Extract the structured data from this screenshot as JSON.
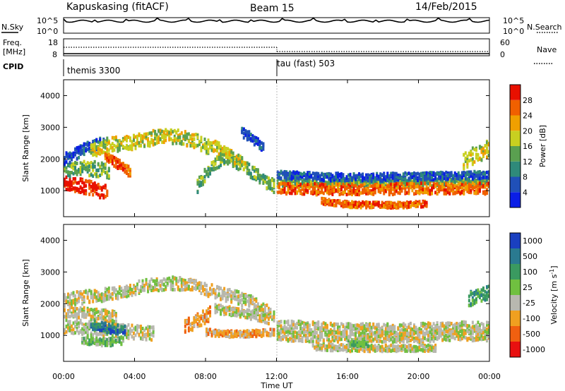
{
  "header": {
    "station": "Kapuskasing (fitACF)",
    "beam": "Beam 15",
    "date": "14/Feb/2015"
  },
  "noise_panel": {
    "left_label": "N.Sky",
    "right_label": "N.Search",
    "left_ticks": [
      "10^5",
      "10^0"
    ],
    "right_ticks": [
      "10^5",
      "10^0"
    ]
  },
  "freq_panel": {
    "left_label_1": "Freq.",
    "left_label_2": "[MHz]",
    "right_label": "Nave",
    "left_ticks": [
      "18",
      "8"
    ],
    "right_ticks": [
      "60",
      "0"
    ]
  },
  "cpid_panel": {
    "label": "CPID",
    "modes": [
      "themis 3300",
      "tau (fast) 503"
    ]
  },
  "time_axis": {
    "label": "Time UT",
    "ticks": [
      "00:00",
      "04:00",
      "08:00",
      "12:00",
      "16:00",
      "20:00",
      "00:00"
    ],
    "range_hours": [
      0,
      24
    ]
  },
  "range_axis": {
    "label": "Slant Range [km]",
    "ticks": [
      "1000",
      "2000",
      "3000",
      "4000"
    ],
    "range_km": [
      180,
      4500
    ]
  },
  "power_colorbar": {
    "title": "Power [dB]",
    "ticks": [
      "4",
      "8",
      "12",
      "16",
      "20",
      "24",
      "28"
    ],
    "colors": [
      "#0a1ee6",
      "#2050b8",
      "#2f8a7a",
      "#5aa050",
      "#c8d020",
      "#f0a000",
      "#f06000",
      "#e81000"
    ]
  },
  "velocity_colorbar": {
    "title": "Velocity [m s",
    "title_sup": "-1",
    "title_end": "]",
    "ticks": [
      "1000",
      "500",
      "100",
      "25",
      "-25",
      "-100",
      "-500",
      "-1000"
    ],
    "colors": [
      "#1a40c0",
      "#2a7a90",
      "#3a9a60",
      "#70c040",
      "#b8b8b0",
      "#f0a020",
      "#f06010",
      "#e81010"
    ]
  },
  "chart_data": {
    "type": "heatmap",
    "x_label": "Time UT",
    "y_label": "Slant Range [km]",
    "xlim": [
      0,
      24
    ],
    "ylim": [
      180,
      4500
    ],
    "mode_change_hour": 12.0,
    "power_bands": [
      {
        "t": [
          0.0,
          0.6,
          1.3,
          2.0,
          2.5
        ],
        "r": [
          1300,
          1250,
          1150,
          1050,
          1000
        ],
        "w": 220,
        "level": 7
      },
      {
        "t": [
          0.0,
          0.8,
          1.5,
          2.2,
          2.6
        ],
        "r": [
          1700,
          1750,
          1750,
          1700,
          1650
        ],
        "w": 230,
        "level": 3
      },
      {
        "t": [
          0.0,
          0.6,
          1.2,
          1.8,
          2.4
        ],
        "r": [
          2050,
          2200,
          2400,
          2500,
          2600
        ],
        "w": 180,
        "level": 1
      },
      {
        "t": [
          1.5,
          2.5,
          3.5,
          4.5,
          5.5,
          6.5,
          7.5,
          8.2
        ],
        "r": [
          2300,
          2500,
          2550,
          2650,
          2800,
          2750,
          2600,
          2400
        ],
        "w": 230,
        "level": 4
      },
      {
        "t": [
          2.3,
          3.0,
          3.8
        ],
        "r": [
          2150,
          1900,
          1600
        ],
        "w": 150,
        "level": 6
      },
      {
        "t": [
          7.5,
          8.0,
          8.5,
          9.0,
          9.5,
          10.0
        ],
        "r": [
          1200,
          1600,
          1900,
          2100,
          2000,
          1800
        ],
        "w": 200,
        "level": 3
      },
      {
        "t": [
          8.3,
          9.0,
          9.5,
          10.0,
          10.3
        ],
        "r": [
          2500,
          2300,
          2100,
          1950,
          1800
        ],
        "w": 180,
        "level": 4
      },
      {
        "t": [
          10.3,
          10.8,
          11.3,
          11.8
        ],
        "r": [
          1750,
          1550,
          1350,
          1200
        ],
        "w": 200,
        "level": 3
      },
      {
        "t": [
          10.0,
          10.6,
          11.2
        ],
        "r": [
          2900,
          2700,
          2400
        ],
        "w": 150,
        "level": 1
      },
      {
        "t": [
          12.0,
          14.0,
          16.0,
          18.0,
          20.0,
          22.0,
          24.0
        ],
        "r": [
          1330,
          1300,
          1300,
          1300,
          1300,
          1300,
          1300
        ],
        "w": 120,
        "level": 3
      },
      {
        "t": [
          12.0,
          14.0,
          16.0,
          18.0,
          20.0,
          22.0,
          24.0
        ],
        "r": [
          1130,
          1100,
          1100,
          1100,
          1120,
          1120,
          1120
        ],
        "w": 170,
        "level": 6
      },
      {
        "t": [
          12.0,
          14.0,
          16.0,
          18.0,
          20.0,
          22.0,
          24.0
        ],
        "r": [
          1550,
          1500,
          1480,
          1480,
          1500,
          1520,
          1550
        ],
        "w": 120,
        "level": 1
      },
      {
        "t": [
          14.5,
          16.0,
          17.5,
          19.0,
          20.5
        ],
        "r": [
          720,
          620,
          600,
          600,
          640
        ],
        "w": 90,
        "level": 6
      },
      {
        "t": [
          22.5,
          23.2,
          24.0
        ],
        "r": [
          2000,
          2200,
          2400
        ],
        "w": 260,
        "level": 4
      }
    ],
    "velocity_bands": [
      {
        "t": [
          0.0,
          1.0,
          2.0,
          3.0,
          4.0,
          5.0,
          6.0,
          7.0,
          8.0,
          9.0,
          10.0,
          11.0,
          11.8
        ],
        "r": [
          2200,
          2250,
          2300,
          2400,
          2550,
          2650,
          2700,
          2650,
          2500,
          2350,
          2200,
          2000,
          1700
        ],
        "w": 200,
        "level": 4
      },
      {
        "t": [
          0.0,
          1.0,
          2.0,
          3.0,
          4.0,
          5.0
        ],
        "r": [
          1350,
          1300,
          1250,
          1200,
          1150,
          1100
        ],
        "w": 220,
        "level": 4
      },
      {
        "t": [
          0.0,
          1.0,
          2.0,
          3.0
        ],
        "r": [
          1800,
          1750,
          1700,
          1650
        ],
        "w": 180,
        "level": 4
      },
      {
        "t": [
          1.5,
          2.2,
          3.0,
          3.5
        ],
        "r": [
          1400,
          1300,
          1250,
          1200
        ],
        "w": 160,
        "level": 1
      },
      {
        "t": [
          1.0,
          1.8,
          2.6,
          3.4
        ],
        "r": [
          900,
          850,
          850,
          900
        ],
        "w": 120,
        "level": 3
      },
      {
        "t": [
          6.8,
          7.3,
          7.8,
          8.2
        ],
        "r": [
          1350,
          1450,
          1600,
          1750
        ],
        "w": 220,
        "level": 5
      },
      {
        "t": [
          8.0,
          9.0,
          10.0,
          11.0,
          11.8
        ],
        "r": [
          1150,
          1100,
          1100,
          1120,
          1150
        ],
        "w": 100,
        "level": 5
      },
      {
        "t": [
          8.5,
          9.5,
          10.5,
          11.5
        ],
        "r": [
          1900,
          1800,
          1700,
          1550
        ],
        "w": 140,
        "level": 4
      },
      {
        "t": [
          12.0,
          14.0,
          16.0,
          18.0,
          20.0,
          22.0,
          24.0
        ],
        "r": [
          1350,
          1300,
          1250,
          1250,
          1250,
          1300,
          1300
        ],
        "w": 180,
        "level": 4
      },
      {
        "t": [
          12.0,
          14.0,
          16.0,
          18.0,
          20.0,
          22.0,
          24.0
        ],
        "r": [
          1050,
          1000,
          1000,
          1000,
          1000,
          1050,
          1050
        ],
        "w": 160,
        "level": 4
      },
      {
        "t": [
          14.0,
          16.0,
          18.0,
          20.0,
          21.0
        ],
        "r": [
          700,
          650,
          650,
          650,
          650
        ],
        "w": 100,
        "level": 4
      },
      {
        "t": [
          16.0,
          16.6,
          17.2
        ],
        "r": [
          800,
          780,
          760
        ],
        "w": 80,
        "level": 3
      },
      {
        "t": [
          22.8,
          23.4,
          24.0
        ],
        "r": [
          2200,
          2300,
          2400
        ],
        "w": 220,
        "level": 2
      }
    ]
  }
}
